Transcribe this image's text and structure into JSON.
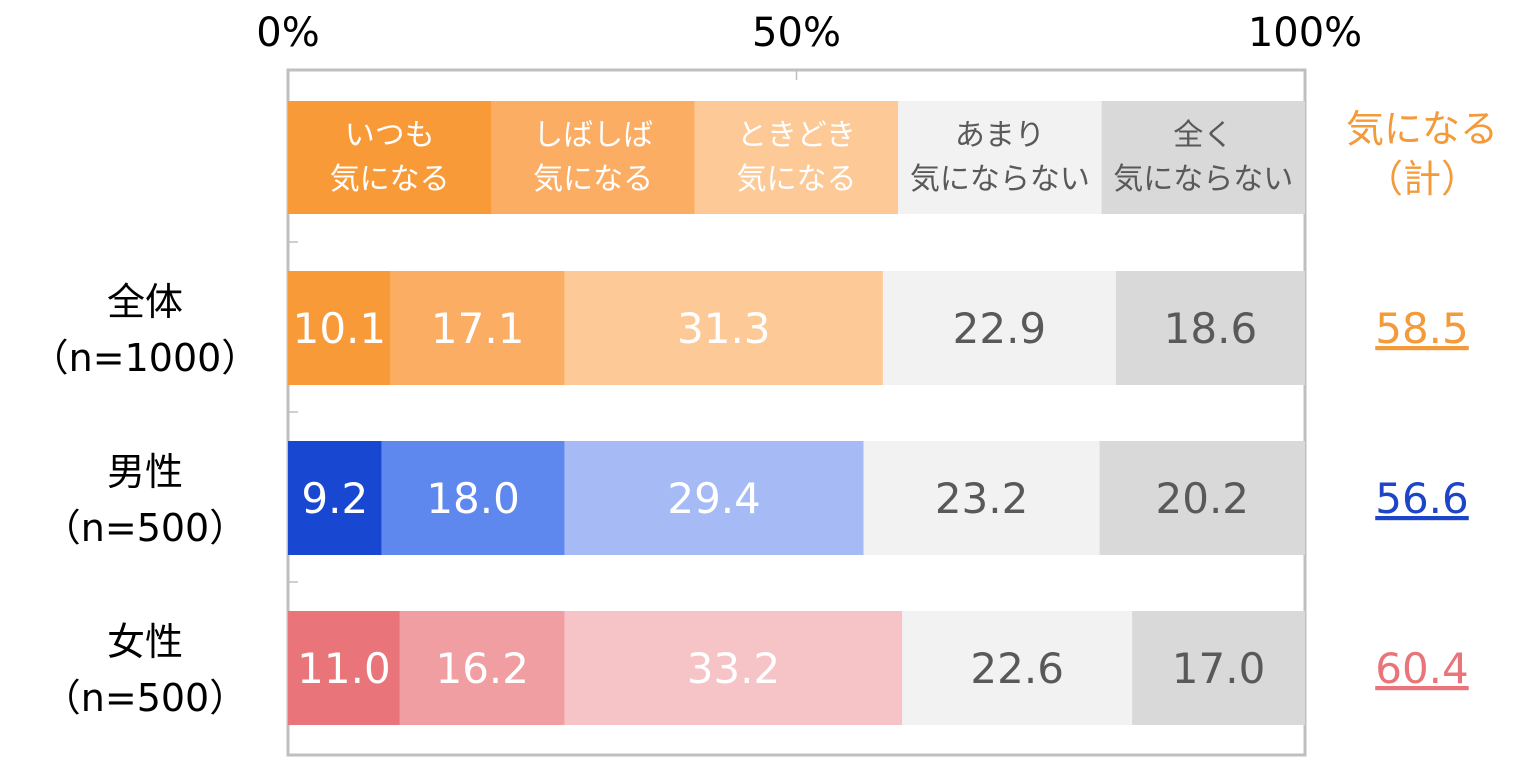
{
  "chart_data": {
    "type": "bar",
    "orientation": "horizontal",
    "stacked": true,
    "xlim": [
      0,
      100
    ],
    "x_ticks": [
      "0%",
      "50%",
      "100%"
    ],
    "legend_placement": "top, inside chart as header row",
    "categories": [
      [
        "いつも",
        "気になる"
      ],
      [
        "しばしば",
        "気になる"
      ],
      [
        "ときどき",
        "気になる"
      ],
      [
        "あまり",
        "気にならない"
      ],
      [
        "全く",
        "気にならない"
      ]
    ],
    "category_colors": [
      "#f99a38",
      "#fbad64",
      "#fdc996",
      "#f2f2f2",
      "#d9d9d9"
    ],
    "legend_text_colors": [
      "#ffffff",
      "#ffffff",
      "#ffffff",
      "#595959",
      "#595959"
    ],
    "total_header": [
      "気になる",
      "（計）"
    ],
    "total_header_color": "#f39a3a",
    "rows": [
      {
        "label": [
          "全体",
          "（n=1000）"
        ],
        "values": [
          10.1,
          17.1,
          31.3,
          22.9,
          18.6
        ],
        "labels": [
          "10.1",
          "17.1",
          "31.3",
          "22.9",
          "18.6"
        ],
        "colors": [
          "#f99a38",
          "#fbad64",
          "#fdc996",
          "#f2f2f2",
          "#d9d9d9"
        ],
        "label_colors": [
          "#ffffff",
          "#ffffff",
          "#ffffff",
          "#595959",
          "#595959"
        ],
        "total": "58.5",
        "total_color": "#f39a3a"
      },
      {
        "label": [
          "男性",
          "（n=500）"
        ],
        "values": [
          9.2,
          18.0,
          29.4,
          23.2,
          20.2
        ],
        "labels": [
          "9.2",
          "18.0",
          "29.4",
          "23.2",
          "20.2"
        ],
        "colors": [
          "#1848d1",
          "#5f88ef",
          "#a6bbf5",
          "#f2f2f2",
          "#d9d9d9"
        ],
        "label_colors": [
          "#ffffff",
          "#ffffff",
          "#ffffff",
          "#595959",
          "#595959"
        ],
        "total": "56.6",
        "total_color": "#1d45c8"
      },
      {
        "label": [
          "女性",
          "（n=500）"
        ],
        "values": [
          11.0,
          16.2,
          33.2,
          22.6,
          17.0
        ],
        "labels": [
          "11.0",
          "16.2",
          "33.2",
          "22.6",
          "17.0"
        ],
        "colors": [
          "#e9747a",
          "#f19ea3",
          "#f6c3c6",
          "#f2f2f2",
          "#d9d9d9"
        ],
        "label_colors": [
          "#ffffff",
          "#ffffff",
          "#ffffff",
          "#595959",
          "#595959"
        ],
        "total": "60.4",
        "total_color": "#e9747a"
      }
    ],
    "grid": false
  }
}
